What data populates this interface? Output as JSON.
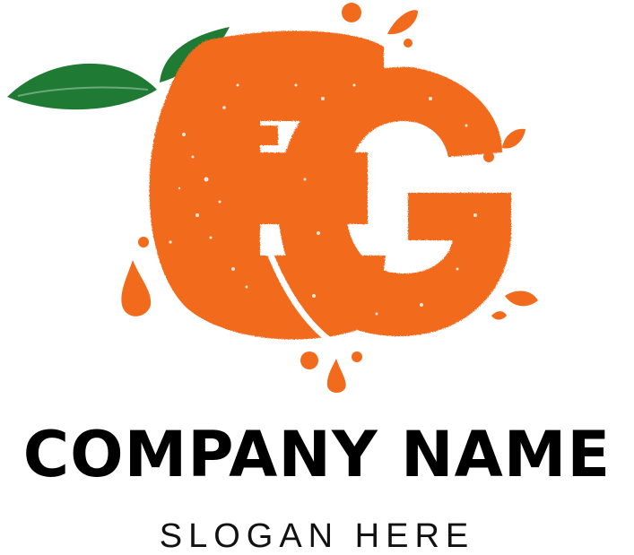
{
  "brand": {
    "company_name": "COMPANY NAME",
    "slogan": "SLOGAN HERE",
    "monogram": "EG",
    "colors": {
      "orange": "#f26a1b",
      "leaf_green": "#1f7a33",
      "text": "#000000",
      "background": "#ffffff"
    },
    "icons": [
      "orange-fruit-icon",
      "leaf-icon",
      "juice-drop-icon"
    ]
  }
}
